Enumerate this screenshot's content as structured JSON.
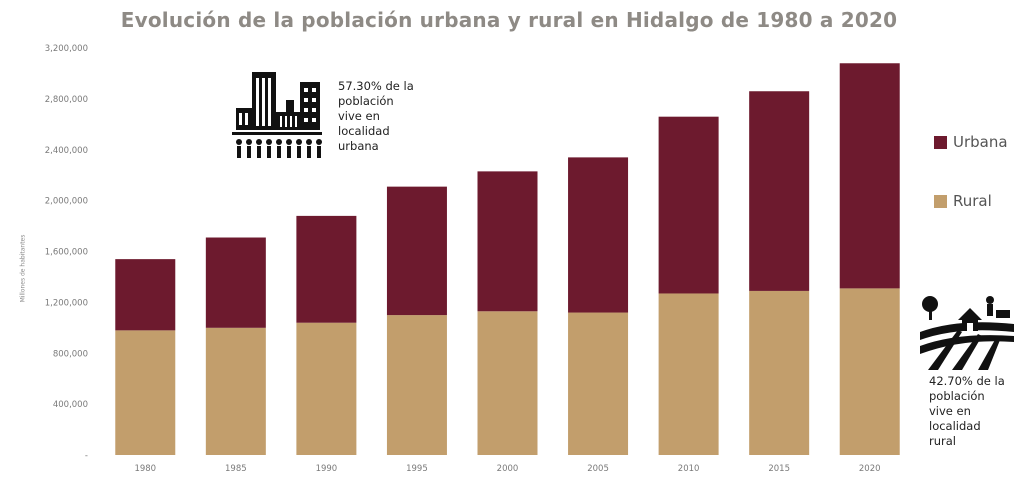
{
  "chart_data": {
    "type": "bar",
    "stacked": true,
    "title": "Evolución de la población urbana y rural en Hidalgo de 1980 a 2020",
    "ylabel": "Millones de habitantes",
    "xlabel": "",
    "categories": [
      "1980",
      "1985",
      "1990",
      "1995",
      "2000",
      "2005",
      "2010",
      "2015",
      "2020"
    ],
    "series": [
      {
        "name": "Rural",
        "color": "#c29e6c",
        "values": [
          980000,
          1000000,
          1040000,
          1100000,
          1130000,
          1120000,
          1270000,
          1290000,
          1310000
        ]
      },
      {
        "name": "Urbana",
        "color": "#6d1a2e",
        "values": [
          560000,
          710000,
          840000,
          1010000,
          1100000,
          1220000,
          1390000,
          1570000,
          1770000
        ]
      }
    ],
    "ylim": [
      0,
      3200000
    ],
    "yticks": [
      0,
      400000,
      800000,
      1200000,
      1600000,
      2000000,
      2400000,
      2800000,
      3200000
    ],
    "ytick_labels": [
      "-",
      "400,000",
      "800,000",
      "1,200,000",
      "1,600,000",
      "2,000,000",
      "2,400,000",
      "2,800,000",
      "3,200,000"
    ],
    "grid": false,
    "legend_position": "right"
  },
  "legend": [
    {
      "label": "Urbana",
      "color": "#6d1a2e"
    },
    {
      "label": "Rural",
      "color": "#c29e6c"
    }
  ],
  "annotations": {
    "urban": [
      "57.30% de la",
      "población",
      "vive en",
      "localidad",
      "urbana"
    ],
    "rural": [
      "42.70% de la",
      "población",
      "vive en",
      "localidad",
      "rural"
    ]
  },
  "icons": {
    "urban": "city-buildings-icon",
    "rural": "farm-field-icon"
  }
}
